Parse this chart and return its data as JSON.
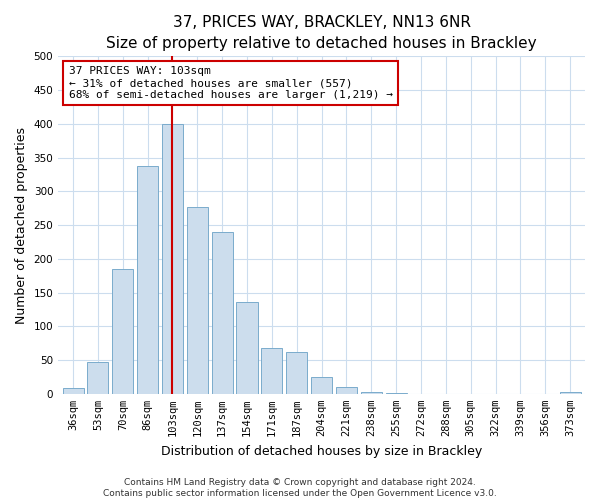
{
  "title": "37, PRICES WAY, BRACKLEY, NN13 6NR",
  "subtitle": "Size of property relative to detached houses in Brackley",
  "xlabel": "Distribution of detached houses by size in Brackley",
  "ylabel": "Number of detached properties",
  "bar_labels": [
    "36sqm",
    "53sqm",
    "70sqm",
    "86sqm",
    "103sqm",
    "120sqm",
    "137sqm",
    "154sqm",
    "171sqm",
    "187sqm",
    "204sqm",
    "221sqm",
    "238sqm",
    "255sqm",
    "272sqm",
    "288sqm",
    "305sqm",
    "322sqm",
    "339sqm",
    "356sqm",
    "373sqm"
  ],
  "bar_heights": [
    8,
    47,
    185,
    338,
    400,
    277,
    240,
    136,
    68,
    62,
    25,
    10,
    3,
    1,
    0,
    0,
    0,
    0,
    0,
    0,
    2
  ],
  "bar_color": "#ccdded",
  "bar_edge_color": "#7aabcc",
  "vline_x_index": 4,
  "vline_color": "#cc0000",
  "annotation_text": "37 PRICES WAY: 103sqm\n← 31% of detached houses are smaller (557)\n68% of semi-detached houses are larger (1,219) →",
  "annotation_box_facecolor": "#ffffff",
  "annotation_box_edgecolor": "#cc0000",
  "ylim": [
    0,
    500
  ],
  "yticks": [
    0,
    50,
    100,
    150,
    200,
    250,
    300,
    350,
    400,
    450,
    500
  ],
  "footer1": "Contains HM Land Registry data © Crown copyright and database right 2024.",
  "footer2": "Contains public sector information licensed under the Open Government Licence v3.0.",
  "background_color": "#ffffff",
  "plot_bg_color": "#ffffff",
  "grid_color": "#ccddee",
  "title_fontsize": 11,
  "subtitle_fontsize": 10,
  "axis_label_fontsize": 9,
  "tick_fontsize": 7.5,
  "annotation_fontsize": 8,
  "footer_fontsize": 6.5
}
